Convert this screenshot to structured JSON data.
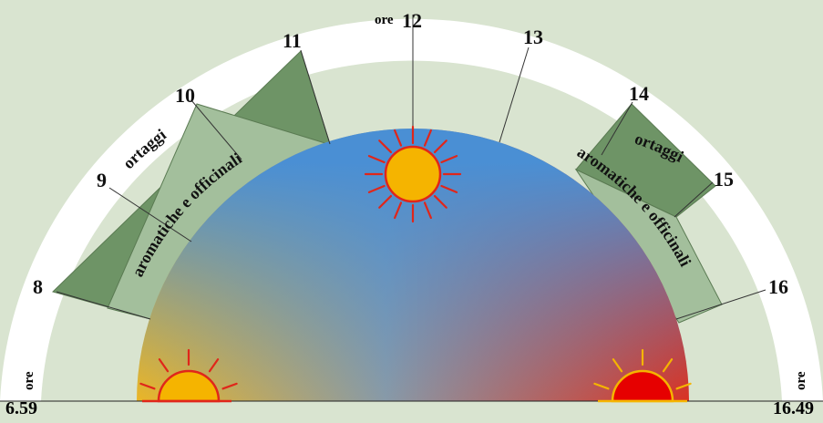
{
  "colors": {
    "background": "#d9e4d0",
    "rim": "#ffffff",
    "dark_band": "#6e9466",
    "light_band": "#a3bf9c",
    "sky_top": "#4a8fd4",
    "sunrise": "#f5b81a",
    "sunset": "#e32a16",
    "sun_fill": "#f5b400",
    "sun_ray": "#e0261a",
    "set_fill": "#e60000"
  },
  "start_time": "6.59",
  "end_time": "16.49",
  "ore_label": "ore",
  "hours": [
    {
      "label": "8"
    },
    {
      "label": "9"
    },
    {
      "label": "10"
    },
    {
      "label": "11"
    },
    {
      "label": "12"
    },
    {
      "label": "13"
    },
    {
      "label": "14"
    },
    {
      "label": "15"
    },
    {
      "label": "16"
    }
  ],
  "bands": {
    "morning": {
      "outer": "ortaggi",
      "inner": "aromatiche e officinali"
    },
    "afternoon": {
      "outer": "ortaggi",
      "inner": "aromatiche e officinali"
    }
  },
  "icons": {
    "rising": "sunrise-icon",
    "noon": "sun-icon",
    "setting": "sunset-icon"
  }
}
